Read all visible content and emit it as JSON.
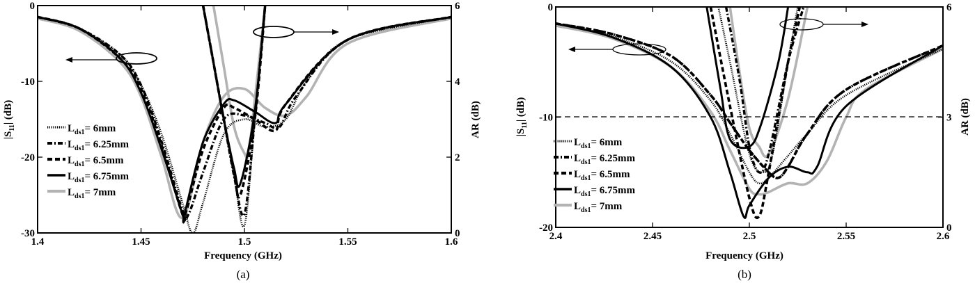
{
  "chart_data": [
    {
      "id": "a",
      "type": "line",
      "caption": "(a)",
      "title": "",
      "xlabel": "Frequency (GHz)",
      "ylabel": "|S11| (dB)",
      "y2label": "AR (dB)",
      "xlim": [
        1.4,
        1.6
      ],
      "ylim": [
        -30,
        0
      ],
      "y2lim": [
        0,
        6
      ],
      "xticks": [
        "1.4",
        "1.45",
        "1.5",
        "1.55",
        "1.6"
      ],
      "yticks": [
        "0",
        "-10",
        "-20",
        "-30"
      ],
      "y2ticks": [
        "6",
        "4",
        "2",
        "0"
      ],
      "grid": false,
      "legend_position": "lower-left",
      "annotations": [
        "ellipse+arrow left: S11 curves -> left axis",
        "ellipse+arrow right: AR curves -> right axis"
      ],
      "series": [
        {
          "name": "Lds1= 6mm",
          "style": "dotted",
          "color": "#000000",
          "s11": {
            "x": [
              1.4,
              1.42,
              1.44,
              1.45,
              1.46,
              1.47,
              1.475,
              1.48,
              1.49,
              1.5,
              1.51,
              1.52,
              1.53,
              1.55,
              1.6
            ],
            "y": [
              -1.5,
              -3,
              -6.5,
              -10.5,
              -17,
              -26,
              -30,
              -26,
              -17,
              -15,
              -16,
              -15,
              -10,
              -4.5,
              -1.5
            ]
          },
          "ar": {
            "x": [
              1.48,
              1.485,
              1.49,
              1.495,
              1.5,
              1.505,
              1.51
            ],
            "y": [
              6,
              4.5,
              3,
              1.5,
              0.2,
              3,
              6
            ]
          }
        },
        {
          "name": "Lds1= 6.25mm",
          "style": "dash-dot",
          "color": "#000000",
          "s11": {
            "x": [
              1.4,
              1.42,
              1.44,
              1.45,
              1.46,
              1.47,
              1.473,
              1.48,
              1.49,
              1.5,
              1.51,
              1.517,
              1.525,
              1.55,
              1.6
            ],
            "y": [
              -1.5,
              -3,
              -6.5,
              -10.5,
              -18,
              -27,
              -27.5,
              -22,
              -15,
              -14.5,
              -15.5,
              -16,
              -12,
              -4.5,
              -1.5
            ]
          },
          "ar": {
            "x": [
              1.48,
              1.485,
              1.49,
              1.495,
              1.5,
              1.505,
              1.51
            ],
            "y": [
              6,
              4.5,
              3,
              1.5,
              0.5,
              3,
              6
            ]
          }
        },
        {
          "name": "Lds1= 6.5mm",
          "style": "dashed",
          "color": "#000000",
          "s11": {
            "x": [
              1.4,
              1.42,
              1.44,
              1.45,
              1.46,
              1.47,
              1.472,
              1.48,
              1.49,
              1.495,
              1.505,
              1.515,
              1.52,
              1.55,
              1.6
            ],
            "y": [
              -1.5,
              -3,
              -7,
              -11,
              -18.5,
              -27.5,
              -27,
              -19,
              -13.5,
              -13.5,
              -15,
              -16.5,
              -13,
              -4.5,
              -1.5
            ]
          },
          "ar": {
            "x": [
              1.48,
              1.485,
              1.49,
              1.495,
              1.498,
              1.505,
              1.51
            ],
            "y": [
              6,
              4.5,
              3,
              1.6,
              1.0,
              3,
              6
            ]
          }
        },
        {
          "name": "Lds1= 6.75mm",
          "style": "solid",
          "color": "#000000",
          "s11": {
            "x": [
              1.4,
              1.42,
              1.44,
              1.45,
              1.46,
              1.47,
              1.471,
              1.48,
              1.49,
              1.495,
              1.505,
              1.515,
              1.52,
              1.55,
              1.6
            ],
            "y": [
              -1.5,
              -3,
              -7,
              -11.5,
              -19,
              -27.5,
              -27.5,
              -18,
              -13,
              -12.5,
              -14,
              -15.5,
              -13,
              -4.5,
              -1.5
            ]
          },
          "ar": {
            "x": [
              1.48,
              1.485,
              1.49,
              1.495,
              1.498,
              1.505,
              1.51
            ],
            "y": [
              6,
              4.5,
              3,
              1.7,
              1.3,
              3.2,
              6
            ]
          }
        },
        {
          "name": "Lds1= 7mm",
          "style": "solid-gray",
          "color": "#b3b3b3",
          "s11": {
            "x": [
              1.4,
              1.42,
              1.44,
              1.45,
              1.46,
              1.47,
              1.48,
              1.49,
              1.5,
              1.51,
              1.52,
              1.53,
              1.55,
              1.6
            ],
            "y": [
              -1.7,
              -3.3,
              -7.5,
              -12,
              -20,
              -28,
              -18,
              -12,
              -11,
              -13.5,
              -14.5,
              -12,
              -5,
              -1.7
            ]
          },
          "ar": {
            "x": [
              1.485,
              1.49,
              1.495,
              1.5,
              1.502,
              1.505,
              1.51
            ],
            "y": [
              6,
              4.4,
              2.8,
              2.1,
              2.1,
              3.5,
              6
            ]
          }
        }
      ]
    },
    {
      "id": "b",
      "type": "line",
      "caption": "(b)",
      "title": "",
      "xlabel": "Frequency (GHz)",
      "ylabel": "|S11| (dB)",
      "y2label": "AR (dB)",
      "xlim": [
        2.4,
        2.6
      ],
      "ylim": [
        -20,
        0
      ],
      "y2lim": [
        0,
        6
      ],
      "xticks": [
        "2.4",
        "2.45",
        "2.5",
        "2.55",
        "2.6"
      ],
      "yticks": [
        "0",
        "-10",
        "-20"
      ],
      "y2ticks": [
        "6",
        "3",
        "0"
      ],
      "reference_line": {
        "s11": -10,
        "ar": 3,
        "style": "dashed"
      },
      "grid": false,
      "legend_position": "lower-left",
      "annotations": [
        "ellipse+arrow left: S11 curves -> left axis",
        "ellipse+arrow right: AR curves -> right axis"
      ],
      "series": [
        {
          "name": "Lds1= 6mm",
          "style": "dotted",
          "color": "#000000",
          "s11": {
            "x": [
              2.4,
              2.43,
              2.46,
              2.48,
              2.49,
              2.5,
              2.505,
              2.51,
              2.52,
              2.53,
              2.55,
              2.6
            ],
            "y": [
              -1.5,
              -2.7,
              -5,
              -8.5,
              -11.5,
              -15,
              -16,
              -15.5,
              -13.5,
              -11.5,
              -8,
              -3.8
            ]
          },
          "ar": {
            "x": [
              2.484,
              2.49,
              2.5,
              2.507,
              2.512,
              2.52,
              2.525
            ],
            "y": [
              6,
              4.5,
              2,
              1.5,
              2,
              4.5,
              6
            ]
          }
        },
        {
          "name": "Lds1= 6.25mm",
          "style": "dash-dot",
          "color": "#000000",
          "s11": {
            "x": [
              2.4,
              2.43,
              2.46,
              2.48,
              2.49,
              2.5,
              2.51,
              2.515,
              2.52,
              2.53,
              2.55,
              2.6
            ],
            "y": [
              -1.5,
              -2.5,
              -4.5,
              -8,
              -10.5,
              -13,
              -15,
              -15.5,
              -14.5,
              -11.5,
              -7.5,
              -3.5
            ]
          },
          "ar": {
            "x": [
              2.488,
              2.495,
              2.5,
              2.505,
              2.51,
              2.52,
              2.528
            ],
            "y": [
              6,
              4,
              2.2,
              1.5,
              2,
              4.5,
              6
            ]
          }
        },
        {
          "name": "Lds1= 6.5mm",
          "style": "dashed",
          "color": "#000000",
          "s11": {
            "x": [
              2.4,
              2.43,
              2.46,
              2.48,
              2.49,
              2.5,
              2.51,
              2.515,
              2.52,
              2.53,
              2.55,
              2.6
            ],
            "y": [
              -1.5,
              -2.5,
              -4.5,
              -8,
              -10.5,
              -13,
              -15,
              -15.5,
              -14.5,
              -11.5,
              -7.5,
              -3.5
            ]
          },
          "ar": {
            "x": [
              2.48,
              2.49,
              2.5,
              2.505,
              2.51,
              2.52,
              2.526
            ],
            "y": [
              6,
              3.3,
              0.8,
              0.3,
              1.5,
              4.5,
              6
            ]
          }
        },
        {
          "name": "Lds1= 6.75mm",
          "style": "solid",
          "color": "#000000",
          "s11": {
            "x": [
              2.4,
              2.43,
              2.46,
              2.48,
              2.49,
              2.497,
              2.5,
              2.51,
              2.52,
              2.53,
              2.535,
              2.55,
              2.6
            ],
            "y": [
              -1.5,
              -2.8,
              -5.5,
              -10,
              -15,
              -19,
              -18,
              -15.5,
              -14.5,
              -15,
              -14.5,
              -9,
              -3.5
            ]
          },
          "ar": {
            "x": [
              2.478,
              2.485,
              2.49,
              2.5,
              2.506,
              2.515,
              2.52
            ],
            "y": [
              6,
              3.8,
              2.4,
              2.2,
              2.8,
              4.5,
              6
            ]
          }
        },
        {
          "name": "Lds1= 7mm",
          "style": "solid-gray",
          "color": "#b3b3b3",
          "s11": {
            "x": [
              2.4,
              2.43,
              2.46,
              2.48,
              2.49,
              2.5,
              2.505,
              2.51,
              2.52,
              2.53,
              2.54,
              2.55,
              2.56,
              2.6
            ],
            "y": [
              -1.7,
              -2.9,
              -5.5,
              -9.5,
              -13,
              -16.5,
              -17,
              -16.8,
              -16,
              -16,
              -14,
              -10,
              -7.5,
              -3.8
            ]
          },
          "ar": {
            "x": [
              2.49,
              2.495,
              2.5,
              2.505,
              2.51,
              2.52,
              2.53
            ],
            "y": [
              6,
              4.2,
              2.7,
              2.2,
              2,
              3.5,
              6
            ]
          }
        }
      ]
    }
  ],
  "legend": {
    "items": [
      {
        "prefix": "L",
        "sub": "ds1",
        "value": "= 6mm"
      },
      {
        "prefix": "L",
        "sub": "ds1",
        "value": "= 6.25mm"
      },
      {
        "prefix": "L",
        "sub": "ds1",
        "value": "= 6.5mm"
      },
      {
        "prefix": "L",
        "sub": "ds1",
        "value": "= 6.75mm"
      },
      {
        "prefix": "L",
        "sub": "ds1",
        "value": "= 7mm"
      }
    ]
  },
  "labels": {
    "xlabel": "Frequency (GHz)",
    "ylabel_main": "|S",
    "ylabel_sub": "11",
    "ylabel_tail": "| (dB)",
    "y2label": "AR (dB)",
    "caption_a": "(a)",
    "caption_b": "(b)"
  },
  "colors": {
    "black": "#000000",
    "gray": "#b3b3b3"
  }
}
